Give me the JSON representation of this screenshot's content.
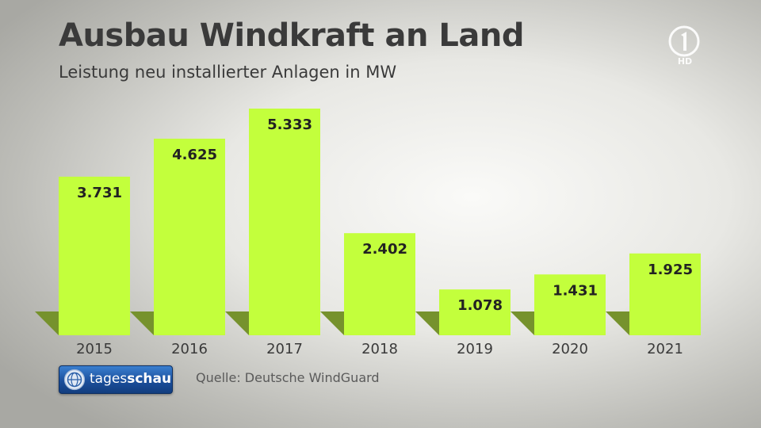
{
  "header": {
    "title": "Ausbau Windkraft an Land",
    "subtitle": "Leistung neu installierter Anlagen in MW"
  },
  "channel_logo": {
    "text": "HD",
    "icon": "ard-1-logo-icon"
  },
  "brand": {
    "part1": "tages",
    "part2": "schau",
    "icon": "tagesschau-globe-icon"
  },
  "source": "Quelle: Deutsche WindGuard",
  "colors": {
    "bar": "#c3ff3c",
    "bar_shadow": "#76922d",
    "text": "#3a3a3a"
  },
  "chart_data": {
    "type": "bar",
    "categories": [
      "2015",
      "2016",
      "2017",
      "2018",
      "2019",
      "2020",
      "2021"
    ],
    "values": [
      3731,
      4625,
      5333,
      2402,
      1078,
      1431,
      1925
    ],
    "value_labels": [
      "3.731",
      "4.625",
      "5.333",
      "2.402",
      "1.078",
      "1.431",
      "1.925"
    ],
    "title": "Ausbau Windkraft an Land",
    "subtitle": "Leistung neu installierter Anlagen in MW",
    "ylim": [
      0,
      5333
    ],
    "grid": false,
    "legend": "none"
  }
}
